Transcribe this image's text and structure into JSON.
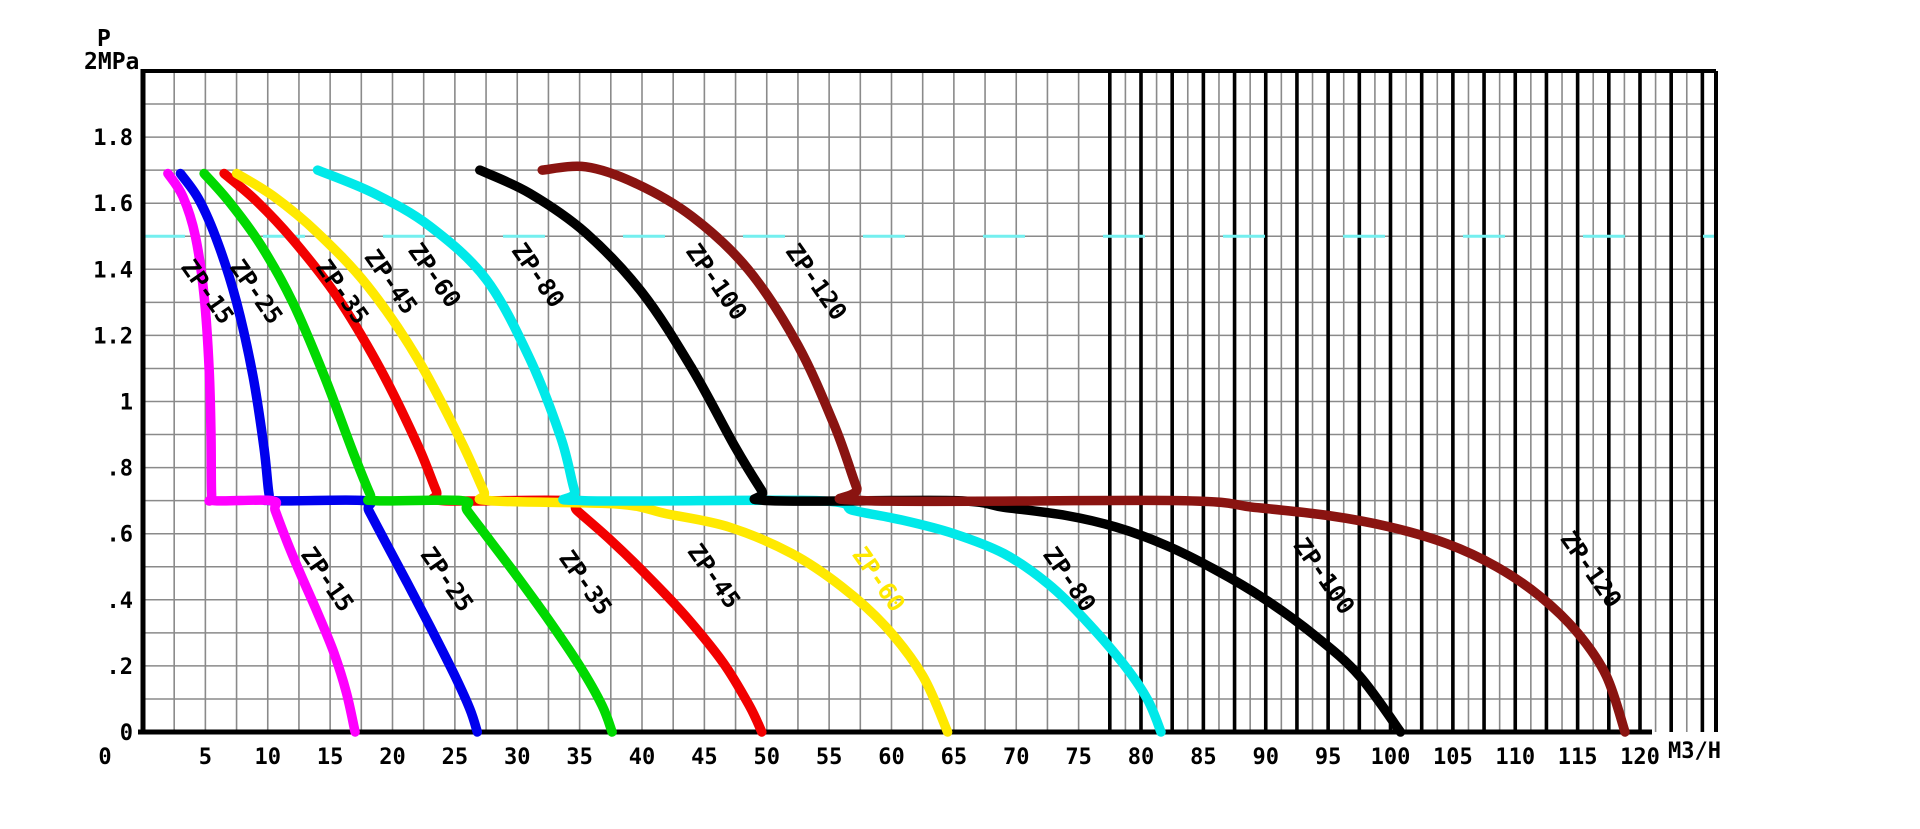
{
  "chart_data": {
    "type": "line",
    "title_axis_y_line1": "P",
    "title_axis_y_line2": "2MPa",
    "x_axis_label": "M3/H",
    "xlim": [
      0,
      120
    ],
    "ylim": [
      0,
      2
    ],
    "grid": {
      "x_minor_step": 2.5,
      "y_minor_step": 0.1,
      "bold_vertical_from": 77.5,
      "bold_vertical_step": 2.5,
      "dense_thin_offset": 1.25,
      "grid_extends_to_x": 126
    },
    "x_ticks": [
      0,
      5,
      10,
      15,
      20,
      25,
      30,
      35,
      40,
      45,
      50,
      55,
      60,
      65,
      70,
      75,
      80,
      85,
      90,
      95,
      100,
      105,
      110,
      115,
      120
    ],
    "y_ticks": [
      {
        "value": 1.8,
        "label": "1.8"
      },
      {
        "value": 1.6,
        "label": "1.6"
      },
      {
        "value": 1.4,
        "label": "1.4"
      },
      {
        "value": 1.2,
        "label": "1.2"
      },
      {
        "value": 1.0,
        "label": "1"
      },
      {
        "value": 0.8,
        "label": ".8"
      },
      {
        "value": 0.6,
        "label": ".6"
      },
      {
        "value": 0.4,
        "label": ".4"
      },
      {
        "value": 0.2,
        "label": ".2"
      },
      {
        "value": 0.0,
        "label": "0"
      }
    ],
    "dashed_reference_line": {
      "pressure": 1.5,
      "color": "#74efef"
    },
    "plateau_pressure": 0.7,
    "max_pressure": 1.7,
    "series": [
      {
        "name": "ZP-15",
        "color": "#ff00ff",
        "z": 2,
        "points": [
          [
            2.0,
            1.69
          ],
          [
            3.2,
            1.62
          ],
          [
            4.2,
            1.5
          ],
          [
            4.9,
            1.32
          ],
          [
            5.3,
            1.1
          ],
          [
            5.45,
            0.9
          ],
          [
            5.5,
            0.72
          ],
          [
            5.7,
            0.7
          ],
          [
            10.3,
            0.7
          ],
          [
            10.6,
            0.67
          ],
          [
            11.5,
            0.58
          ],
          [
            12.6,
            0.48
          ],
          [
            14.0,
            0.36
          ],
          [
            15.3,
            0.24
          ],
          [
            16.3,
            0.12
          ],
          [
            17.0,
            0.0
          ]
        ],
        "label_upper": {
          "text": "ZP-15",
          "x": 5.1,
          "p": 1.33,
          "rotation": 55,
          "color": "#000000"
        },
        "label_lower": {
          "text": "ZP-15",
          "x": 14.7,
          "p": 0.46,
          "rotation": 55,
          "color": "#000000"
        }
      },
      {
        "name": "ZP-25",
        "color": "#0000ee",
        "z": 1,
        "points": [
          [
            3.0,
            1.69
          ],
          [
            4.5,
            1.61
          ],
          [
            6.0,
            1.48
          ],
          [
            7.5,
            1.3
          ],
          [
            8.8,
            1.08
          ],
          [
            9.7,
            0.86
          ],
          [
            10.1,
            0.72
          ],
          [
            10.4,
            0.7
          ],
          [
            17.7,
            0.7
          ],
          [
            18.1,
            0.67
          ],
          [
            19.5,
            0.57
          ],
          [
            21.2,
            0.45
          ],
          [
            23.0,
            0.32
          ],
          [
            25.0,
            0.17
          ],
          [
            26.2,
            0.07
          ],
          [
            26.8,
            0.0
          ]
        ],
        "label_upper": {
          "text": "ZP-25",
          "x": 9.0,
          "p": 1.33,
          "rotation": 55,
          "color": "#000000"
        },
        "label_lower": {
          "text": "ZP-25",
          "x": 24.3,
          "p": 0.46,
          "rotation": 55,
          "color": "#000000"
        }
      },
      {
        "name": "ZP-35",
        "color": "#00d900",
        "z": 4,
        "points": [
          [
            4.9,
            1.69
          ],
          [
            7.0,
            1.6
          ],
          [
            9.5,
            1.47
          ],
          [
            12.0,
            1.3
          ],
          [
            14.5,
            1.08
          ],
          [
            16.8,
            0.85
          ],
          [
            18.2,
            0.72
          ],
          [
            18.6,
            0.7
          ],
          [
            25.5,
            0.7
          ],
          [
            26.0,
            0.67
          ],
          [
            27.8,
            0.58
          ],
          [
            30.0,
            0.47
          ],
          [
            32.5,
            0.34
          ],
          [
            35.0,
            0.2
          ],
          [
            36.8,
            0.08
          ],
          [
            37.6,
            0.0
          ]
        ],
        "label_upper": {
          "text": "ZP-35",
          "x": 15.9,
          "p": 1.33,
          "rotation": 55,
          "color": "#000000"
        },
        "label_lower": {
          "text": "ZP-35",
          "x": 35.4,
          "p": 0.45,
          "rotation": 55,
          "color": "#000000"
        }
      },
      {
        "name": "ZP-45",
        "color": "#f20000",
        "z": 3,
        "points": [
          [
            6.5,
            1.69
          ],
          [
            9.0,
            1.61
          ],
          [
            12.0,
            1.49
          ],
          [
            15.5,
            1.32
          ],
          [
            19.0,
            1.1
          ],
          [
            22.0,
            0.87
          ],
          [
            23.5,
            0.73
          ],
          [
            24.0,
            0.7
          ],
          [
            34.0,
            0.7
          ],
          [
            34.8,
            0.67
          ],
          [
            37.5,
            0.58
          ],
          [
            40.5,
            0.47
          ],
          [
            43.5,
            0.35
          ],
          [
            46.5,
            0.21
          ],
          [
            48.6,
            0.08
          ],
          [
            49.6,
            0.0
          ]
        ],
        "label_upper": {
          "text": "ZP-45",
          "x": 19.8,
          "p": 1.36,
          "rotation": 55,
          "color": "#000000"
        },
        "label_lower": {
          "text": "ZP-45",
          "x": 45.7,
          "p": 0.47,
          "rotation": 55,
          "color": "#000000"
        }
      },
      {
        "name": "ZP-60",
        "color": "#ffe900",
        "z": 5,
        "points": [
          [
            7.5,
            1.69
          ],
          [
            10.5,
            1.62
          ],
          [
            14.0,
            1.51
          ],
          [
            18.0,
            1.35
          ],
          [
            22.0,
            1.13
          ],
          [
            25.5,
            0.88
          ],
          [
            27.3,
            0.73
          ],
          [
            27.8,
            0.7
          ],
          [
            38.0,
            0.69
          ],
          [
            42.0,
            0.66
          ],
          [
            47.0,
            0.62
          ],
          [
            52.0,
            0.54
          ],
          [
            56.0,
            0.44
          ],
          [
            59.5,
            0.32
          ],
          [
            62.5,
            0.17
          ],
          [
            64.5,
            0.0
          ]
        ],
        "label_upper": {
          "text": "ZP-60",
          "x": 23.3,
          "p": 1.38,
          "rotation": 55,
          "color": "#000000"
        },
        "label_lower": {
          "text": "ZP-60",
          "x": 58.9,
          "p": 0.46,
          "rotation": 55,
          "color": "#ffe900"
        }
      },
      {
        "name": "ZP-80",
        "color": "#00e9e9",
        "z": 6,
        "points": [
          [
            14.0,
            1.7
          ],
          [
            18.5,
            1.63
          ],
          [
            23.0,
            1.53
          ],
          [
            27.5,
            1.37
          ],
          [
            31.0,
            1.13
          ],
          [
            33.5,
            0.89
          ],
          [
            34.6,
            0.73
          ],
          [
            35.2,
            0.7
          ],
          [
            54.0,
            0.7
          ],
          [
            57.0,
            0.67
          ],
          [
            61.0,
            0.64
          ],
          [
            65.0,
            0.6
          ],
          [
            69.0,
            0.54
          ],
          [
            72.5,
            0.45
          ],
          [
            75.5,
            0.34
          ],
          [
            78.5,
            0.21
          ],
          [
            80.5,
            0.1
          ],
          [
            81.6,
            0.0
          ]
        ],
        "label_upper": {
          "text": "ZP-80",
          "x": 31.6,
          "p": 1.38,
          "rotation": 55,
          "color": "#000000"
        },
        "label_lower": {
          "text": "ZP-80",
          "x": 74.2,
          "p": 0.46,
          "rotation": 55,
          "color": "#000000"
        }
      },
      {
        "name": "ZP-100",
        "color": "#000000",
        "z": 7,
        "points": [
          [
            27.0,
            1.7
          ],
          [
            31.0,
            1.63
          ],
          [
            35.5,
            1.51
          ],
          [
            40.0,
            1.33
          ],
          [
            44.0,
            1.1
          ],
          [
            47.5,
            0.86
          ],
          [
            49.6,
            0.73
          ],
          [
            50.2,
            0.7
          ],
          [
            65.0,
            0.7
          ],
          [
            69.0,
            0.68
          ],
          [
            74.0,
            0.655
          ],
          [
            78.0,
            0.62
          ],
          [
            82.0,
            0.565
          ],
          [
            86.0,
            0.49
          ],
          [
            90.0,
            0.4
          ],
          [
            94.0,
            0.29
          ],
          [
            97.5,
            0.17
          ],
          [
            100.8,
            0.0
          ]
        ],
        "label_upper": {
          "text": "ZP-100",
          "x": 45.9,
          "p": 1.36,
          "rotation": 55,
          "color": "#000000"
        },
        "label_lower": {
          "text": "ZP-100",
          "x": 94.6,
          "p": 0.47,
          "rotation": 55,
          "color": "#000000"
        }
      },
      {
        "name": "ZP-120",
        "color": "#8a1411",
        "z": 8,
        "points": [
          [
            32.0,
            1.7
          ],
          [
            35.5,
            1.71
          ],
          [
            39.5,
            1.66
          ],
          [
            44.0,
            1.56
          ],
          [
            48.5,
            1.4
          ],
          [
            52.5,
            1.17
          ],
          [
            55.5,
            0.92
          ],
          [
            57.2,
            0.74
          ],
          [
            57.8,
            0.7
          ],
          [
            83.0,
            0.7
          ],
          [
            89.0,
            0.68
          ],
          [
            95.0,
            0.655
          ],
          [
            100.0,
            0.62
          ],
          [
            104.5,
            0.57
          ],
          [
            108.5,
            0.5
          ],
          [
            112.0,
            0.41
          ],
          [
            115.0,
            0.3
          ],
          [
            117.3,
            0.17
          ],
          [
            118.8,
            0.0
          ]
        ],
        "label_upper": {
          "text": "ZP-120",
          "x": 53.9,
          "p": 1.36,
          "rotation": 55,
          "color": "#000000"
        },
        "label_lower": {
          "text": "ZP-120",
          "x": 116.0,
          "p": 0.49,
          "rotation": 55,
          "color": "#000000"
        }
      }
    ]
  }
}
